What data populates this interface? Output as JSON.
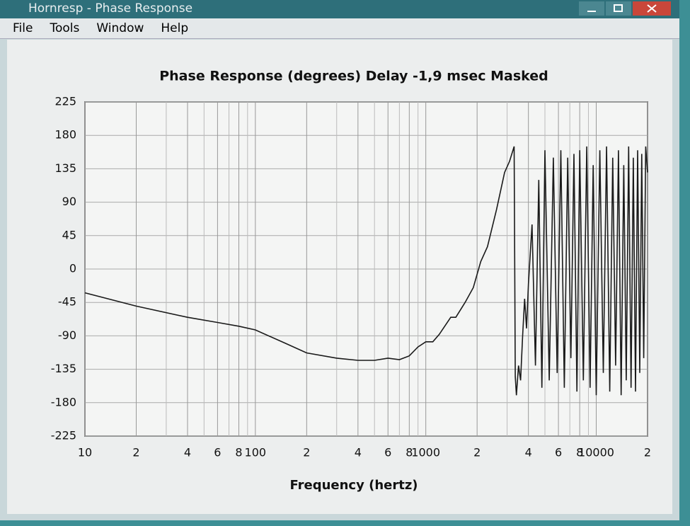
{
  "window": {
    "title": "Hornresp - Phase Response",
    "menu": [
      "File",
      "Tools",
      "Window",
      "Help"
    ]
  },
  "chart_data": {
    "type": "line",
    "title": "Phase Response (degrees)   Delay -1,9 msec   Masked",
    "x_label": "Frequency (hertz)",
    "log_x": true,
    "grid": true,
    "color": "#1a1a1a",
    "xlim": [
      10,
      20000
    ],
    "ylim": [
      -225,
      225
    ],
    "yticks": [
      -225,
      -180,
      -135,
      -90,
      -45,
      0,
      45,
      90,
      135,
      180,
      225
    ],
    "xticks": [
      10,
      {
        "value": 20,
        "label": "2"
      },
      {
        "value": 40,
        "label": "4"
      },
      {
        "value": 60,
        "label": "6"
      },
      {
        "value": 80,
        "label": "8"
      },
      100,
      {
        "value": 200,
        "label": "2"
      },
      {
        "value": 400,
        "label": "4"
      },
      {
        "value": 600,
        "label": "6"
      },
      {
        "value": 800,
        "label": "8"
      },
      1000,
      {
        "value": 2000,
        "label": "2"
      },
      {
        "value": 4000,
        "label": "4"
      },
      {
        "value": 6000,
        "label": "6"
      },
      {
        "value": 8000,
        "label": "8"
      },
      10000,
      {
        "value": 20000,
        "label": "2"
      }
    ],
    "xgrid": [
      30,
      50,
      70,
      90,
      300,
      500,
      700,
      900,
      3000,
      5000,
      7000,
      9000
    ],
    "x": [
      10,
      20,
      40,
      60,
      80,
      100,
      150,
      200,
      300,
      400,
      500,
      600,
      700,
      800,
      900,
      1000,
      1100,
      1200,
      1400,
      1500,
      1700,
      1900,
      2100,
      2300,
      2600,
      2900,
      3100,
      3300,
      3350,
      3400,
      3500,
      3600,
      3700,
      3800,
      3900,
      4000,
      4200,
      4400,
      4600,
      4800,
      5000,
      5300,
      5600,
      5900,
      6200,
      6500,
      6800,
      7100,
      7400,
      7700,
      8000,
      8400,
      8800,
      9200,
      9600,
      10000,
      10500,
      11000,
      11500,
      12000,
      12500,
      13000,
      13500,
      14000,
      14500,
      15000,
      15500,
      16000,
      16500,
      17000,
      17500,
      18000,
      18500,
      19000,
      19500,
      20000
    ],
    "values": [
      -32,
      -50,
      -65,
      -72,
      -77,
      -82,
      -100,
      -113,
      -120,
      -123,
      -123,
      -120,
      -122,
      -117,
      -105,
      -98,
      -98,
      -88,
      -65,
      -65,
      -45,
      -25,
      10,
      30,
      80,
      130,
      145,
      165,
      -145,
      -170,
      -130,
      -150,
      -90,
      -40,
      -80,
      -20,
      60,
      -130,
      120,
      -160,
      160,
      -150,
      150,
      -140,
      160,
      -160,
      150,
      -120,
      155,
      -165,
      160,
      -150,
      165,
      -160,
      140,
      -170,
      160,
      -140,
      165,
      -165,
      150,
      -130,
      160,
      -170,
      140,
      -150,
      165,
      -160,
      150,
      -165,
      160,
      -140,
      155,
      -120,
      165,
      130
    ]
  }
}
